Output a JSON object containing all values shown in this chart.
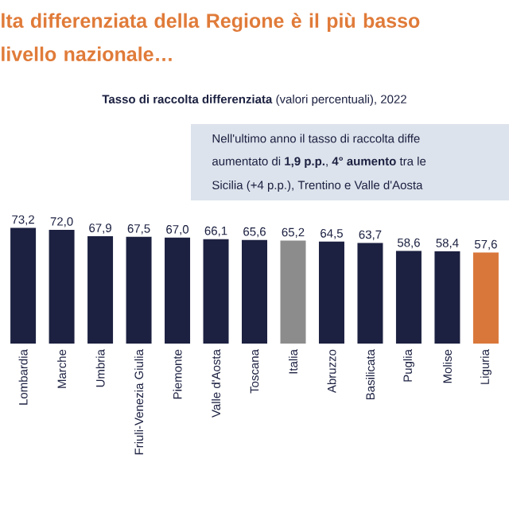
{
  "chart_data": {
    "type": "bar",
    "title": "lta differenziata della Regione è il più basso livello nazionale…",
    "subtitle": "**Tasso di raccolta differenziata** (valori percentuali), 2022",
    "annotations": [
      "Nell'ultimo anno il tasso di raccolta diffe",
      "aumentato di **1,9 p.p.**, **4° aumento** tra le",
      "Sicilia (+4 p.p.), Trentino e Valle d'Aosta"
    ],
    "categories": [
      "Lombardia",
      "Marche",
      "Umbria",
      "Friuli-Venezia Giulia",
      "Piemonte",
      "Valle d'Aosta",
      "Toscana",
      "Italia",
      "Abruzzo",
      "Basilicata",
      "Puglia",
      "Molise",
      "Liguria"
    ],
    "values": [
      73.2,
      72.0,
      67.9,
      67.5,
      67.0,
      66.1,
      65.6,
      65.2,
      64.5,
      63.7,
      58.6,
      58.4,
      57.6
    ],
    "value_labels": [
      "73,2",
      "72,0",
      "67,9",
      "67,5",
      "67,0",
      "66,1",
      "65,6",
      "65,2",
      "64,5",
      "63,7",
      "58,6",
      "58,4",
      "57,6"
    ],
    "colors": [
      "#1c2141",
      "#1c2141",
      "#1c2141",
      "#1c2141",
      "#1c2141",
      "#1c2141",
      "#1c2141",
      "#8c8c8c",
      "#1c2141",
      "#1c2141",
      "#1c2141",
      "#1c2141",
      "#d9773a"
    ]
  }
}
